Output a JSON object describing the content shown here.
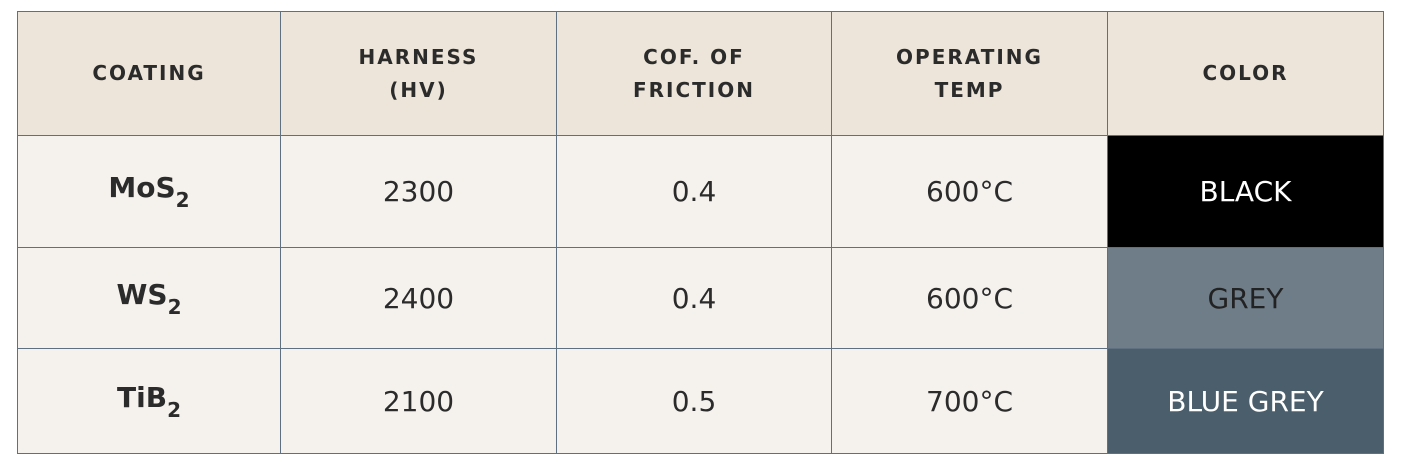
{
  "table": {
    "header": [
      [
        "COATING"
      ],
      [
        "HARNESS",
        "(HV)"
      ],
      [
        "COF. OF",
        "FRICTION"
      ],
      [
        "OPERATING",
        "TEMP"
      ],
      [
        "COLOR"
      ]
    ],
    "rows": [
      [
        {
          "base": "MoS",
          "sub": "2"
        },
        "2300",
        "0.4",
        "600°C",
        {
          "text": "BLACK",
          "background": "#000000",
          "color": "#ffffff"
        }
      ],
      [
        {
          "base": "WS",
          "sub": "2"
        },
        "2400",
        "0.4",
        "600°C",
        {
          "text": "GREY",
          "background": "#6e7d88",
          "color": "#222222"
        }
      ],
      [
        {
          "base": "TiB",
          "sub": "2"
        },
        "2100",
        "0.5",
        "700°C",
        {
          "text": "BLUE GREY",
          "background": "#4a5e6b",
          "color": "#ffffff"
        }
      ]
    ]
  }
}
